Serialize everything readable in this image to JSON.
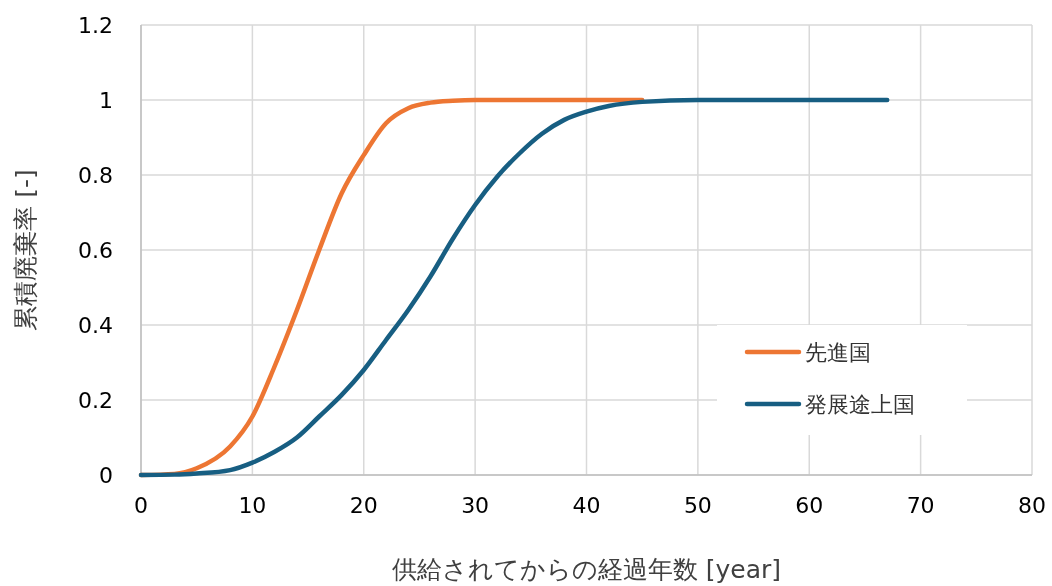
{
  "chart_data": {
    "type": "line",
    "xlabel": "供給されてからの経過年数 [year]",
    "ylabel": "累積廃棄率 [-]",
    "xlim": [
      0,
      80
    ],
    "xticks": [
      0,
      10,
      20,
      30,
      40,
      50,
      60,
      70,
      80
    ],
    "ylim": [
      0,
      1.2
    ],
    "yticks": [
      0,
      0.2,
      0.4,
      0.6,
      0.8,
      1,
      1.2
    ],
    "grid": true,
    "legend": "bottom right",
    "marker": "none",
    "line_style": "solid",
    "series": [
      {
        "name": "先進国",
        "color": "#ed7633",
        "x": [
          0,
          3,
          5,
          8,
          10,
          12,
          14,
          16,
          18,
          20,
          22,
          24,
          26,
          28,
          30,
          35,
          40,
          45
        ],
        "values": [
          0,
          0.003,
          0.018,
          0.076,
          0.156,
          0.29,
          0.44,
          0.6,
          0.75,
          0.853,
          0.938,
          0.978,
          0.993,
          0.998,
          1,
          1,
          1,
          1
        ]
      },
      {
        "name": "発展途上国",
        "color": "#175e82",
        "x": [
          0,
          3,
          5,
          8,
          10,
          12,
          14,
          16,
          18,
          20,
          22,
          24,
          26,
          28,
          30,
          32,
          34,
          36,
          38,
          40,
          42,
          45,
          50,
          55,
          60,
          67
        ],
        "values": [
          0,
          0.001,
          0.004,
          0.013,
          0.033,
          0.062,
          0.1,
          0.156,
          0.213,
          0.28,
          0.36,
          0.44,
          0.53,
          0.63,
          0.72,
          0.796,
          0.858,
          0.91,
          0.947,
          0.969,
          0.984,
          0.995,
          1,
          1,
          1,
          1
        ]
      }
    ]
  }
}
